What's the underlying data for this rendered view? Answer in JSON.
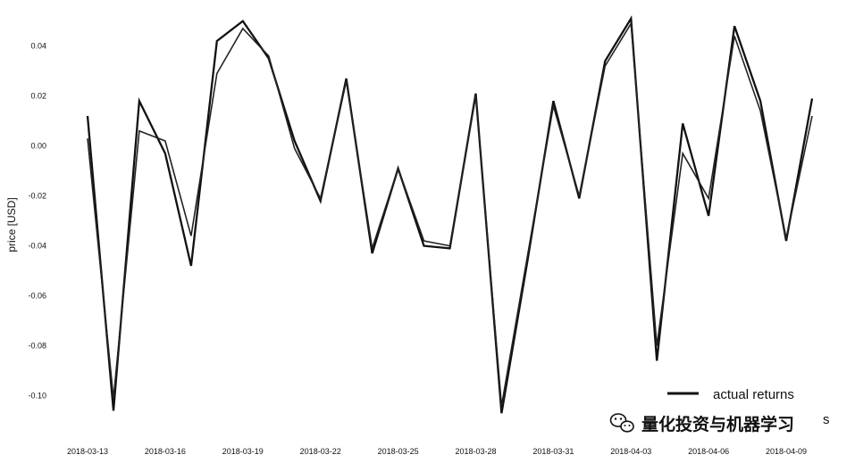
{
  "chart_data": {
    "type": "line",
    "ylabel": "price [USD]",
    "ylim": [
      -0.113,
      0.052
    ],
    "yticks": [
      -0.1,
      -0.08,
      -0.06,
      -0.04,
      -0.02,
      0.0,
      0.02,
      0.04
    ],
    "ytick_labels": [
      "-0.10",
      "-0.08",
      "-0.06",
      "-0.04",
      "-0.02",
      "0.00",
      "0.02",
      "0.04"
    ],
    "x": [
      "2018-03-13",
      "2018-03-14",
      "2018-03-15",
      "2018-03-16",
      "2018-03-17",
      "2018-03-18",
      "2018-03-19",
      "2018-03-20",
      "2018-03-21",
      "2018-03-22",
      "2018-03-23",
      "2018-03-24",
      "2018-03-25",
      "2018-03-26",
      "2018-03-27",
      "2018-03-28",
      "2018-03-29",
      "2018-03-30",
      "2018-03-31",
      "2018-04-01",
      "2018-04-02",
      "2018-04-03",
      "2018-04-04",
      "2018-04-05",
      "2018-04-06",
      "2018-04-07",
      "2018-04-08",
      "2018-04-09",
      "2018-04-10"
    ],
    "xticks": [
      "2018-03-13",
      "2018-03-16",
      "2018-03-19",
      "2018-03-22",
      "2018-03-25",
      "2018-03-28",
      "2018-03-31",
      "2018-04-03",
      "2018-04-06",
      "2018-04-09"
    ],
    "series": [
      {
        "name": "actual returns",
        "color": "#111111",
        "values": [
          0.012,
          -0.106,
          0.018,
          -0.003,
          -0.048,
          0.042,
          0.05,
          0.035,
          0.002,
          -0.022,
          0.027,
          -0.043,
          -0.009,
          -0.04,
          -0.041,
          0.021,
          -0.107,
          -0.046,
          0.018,
          -0.021,
          0.034,
          0.051,
          -0.086,
          0.009,
          -0.028,
          0.048,
          0.018,
          -0.038,
          0.019
        ]
      },
      {
        "name": "",
        "color": "#222222",
        "values": [
          0.003,
          -0.101,
          0.006,
          0.002,
          -0.036,
          0.029,
          0.047,
          0.036,
          -0.001,
          -0.021,
          0.026,
          -0.041,
          -0.009,
          -0.038,
          -0.04,
          0.02,
          -0.104,
          -0.044,
          0.016,
          -0.02,
          0.032,
          0.049,
          -0.08,
          -0.003,
          -0.021,
          0.044,
          0.014,
          -0.037,
          0.012
        ]
      }
    ],
    "legend": {
      "placement": "bottom-right",
      "entries": [
        "actual returns"
      ],
      "obscured_entry_tail": "s"
    },
    "grid": false
  },
  "watermark": {
    "icon": "wechat-icon",
    "text": "量化投资与机器学习"
  }
}
